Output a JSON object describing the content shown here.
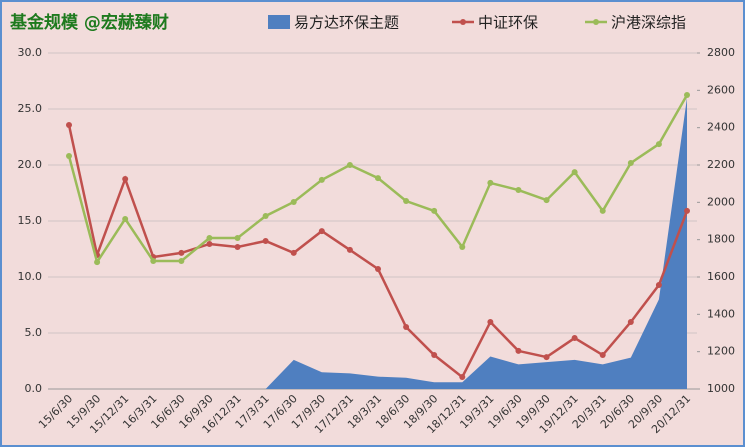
{
  "chart_data": {
    "type": "line",
    "title": "基金规模 @宏赫臻财",
    "categories": [
      "15/6/30",
      "15/9/30",
      "15/12/31",
      "16/3/31",
      "16/6/30",
      "16/9/30",
      "16/12/31",
      "17/3/31",
      "17/6/30",
      "17/9/30",
      "17/12/31",
      "18/3/31",
      "18/6/30",
      "18/9/30",
      "18/12/31",
      "19/3/31",
      "19/6/30",
      "19/9/30",
      "19/12/31",
      "20/3/31",
      "20/6/30",
      "20/9/30",
      "20/12/31"
    ],
    "series": [
      {
        "name": "易方达环保主题",
        "type": "area",
        "color": "#4f7fc0",
        "values": [
          null,
          null,
          null,
          null,
          null,
          null,
          null,
          0,
          2.6,
          1.5,
          1.4,
          1.1,
          1.0,
          0.6,
          0.6,
          2.9,
          2.2,
          2.4,
          2.6,
          2.2,
          2.8,
          8.0,
          26.0
        ]
      },
      {
        "name": "中证环保",
        "type": "line",
        "axis": "y2",
        "color": "#c0504d",
        "values": [
          2414,
          1718,
          2125,
          1707,
          1729,
          1777,
          1761,
          1793,
          1729,
          1846,
          1745,
          1643,
          1332,
          1182,
          1064,
          1359,
          1204,
          1171,
          1273,
          1182,
          1359,
          1557,
          1954
        ]
      },
      {
        "name": "沪港深综指",
        "type": "line",
        "axis": "y2",
        "color": "#9bbb59",
        "values": [
          2248,
          1680,
          1911,
          1686,
          1686,
          1809,
          1809,
          1927,
          2002,
          2120,
          2200,
          2130,
          2007,
          1954,
          1761,
          2104,
          2066,
          2012,
          2162,
          1954,
          2211,
          2312,
          2575
        ]
      }
    ],
    "ylim": [
      0,
      30
    ],
    "yticks": [
      {
        "value": 0,
        "label": "0.0"
      },
      {
        "value": 5,
        "label": "5.0"
      },
      {
        "value": 10,
        "label": "10.0"
      },
      {
        "value": 15,
        "label": "15.0"
      },
      {
        "value": 20,
        "label": "20.0"
      },
      {
        "value": 25,
        "label": "25.0"
      },
      {
        "value": 30,
        "label": "30.0"
      }
    ],
    "y2lim": [
      1000,
      2800
    ],
    "y2ticks": [
      1000,
      1200,
      1400,
      1600,
      1800,
      2000,
      2200,
      2400,
      2600,
      2800
    ],
    "grid": true
  }
}
